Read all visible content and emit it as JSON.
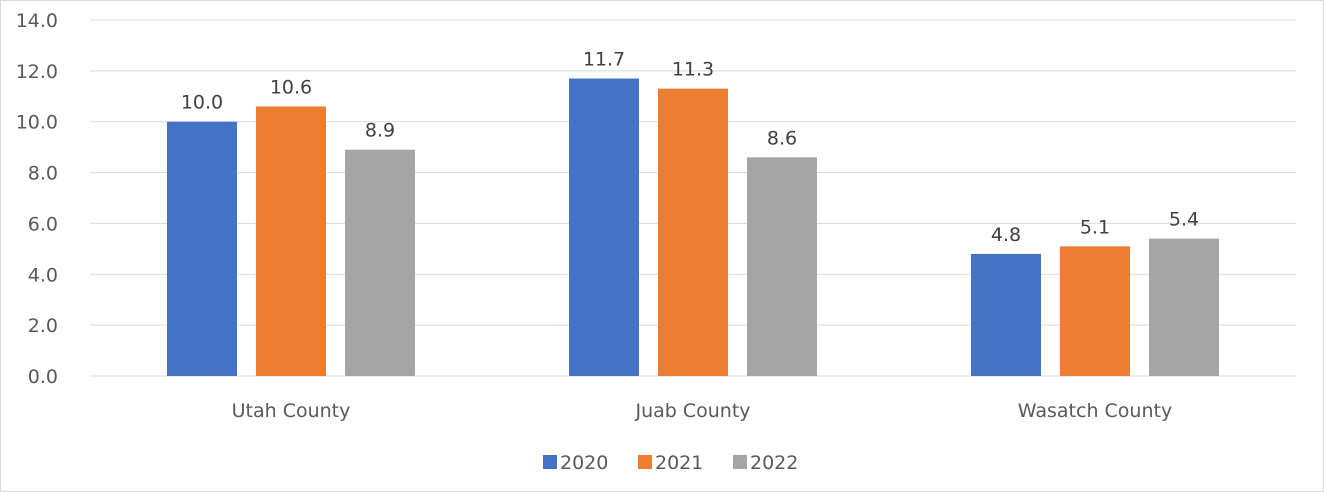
{
  "chart_data": {
    "type": "bar",
    "title": "",
    "xlabel": "",
    "ylabel": "",
    "categories": [
      "Utah County",
      "Juab County",
      "Wasatch County"
    ],
    "series": [
      {
        "name": "2020",
        "color": "#4472c4",
        "values": [
          10.0,
          11.7,
          4.8
        ]
      },
      {
        "name": "2021",
        "color": "#ed7d31",
        "values": [
          10.6,
          11.3,
          5.1
        ]
      },
      {
        "name": "2022",
        "color": "#a5a5a5",
        "values": [
          8.9,
          8.6,
          5.4
        ]
      }
    ],
    "ylim": [
      0,
      14
    ],
    "y_ticks": [
      "0.0",
      "2.0",
      "4.0",
      "6.0",
      "8.0",
      "10.0",
      "12.0",
      "14.0"
    ],
    "data_labels": [
      [
        "10.0",
        "11.7",
        "4.8"
      ],
      [
        "10.6",
        "11.3",
        "5.1"
      ],
      [
        "8.9",
        "8.6",
        "5.4"
      ]
    ],
    "grid": true,
    "gridline_color": "#d9d9d9",
    "legend_position": "bottom"
  }
}
